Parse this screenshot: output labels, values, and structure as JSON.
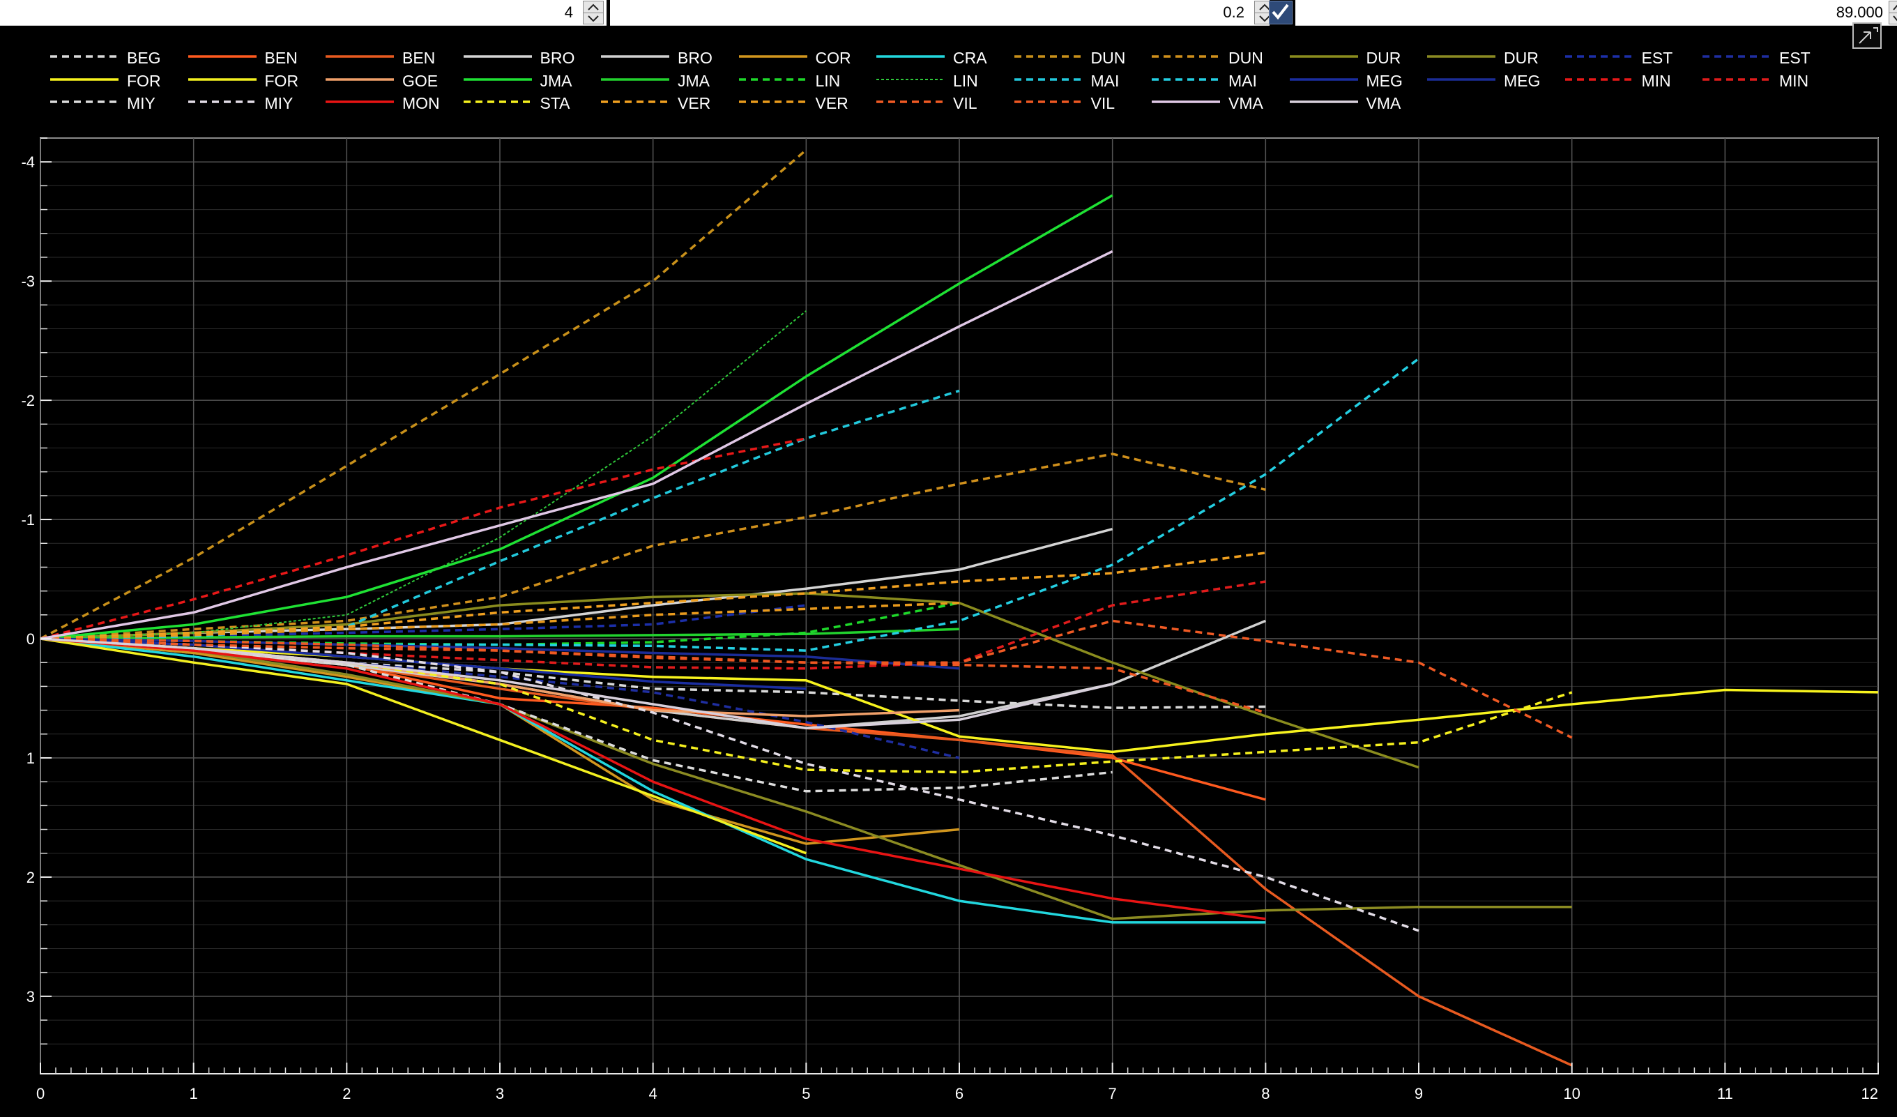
{
  "toolbar": {
    "field1_value": "4",
    "field2_value": "0.2",
    "field3_value": "89.000"
  },
  "chart_data": {
    "type": "line",
    "title": "",
    "xlabel": "",
    "ylabel": "",
    "xlim": [
      0,
      12
    ],
    "ylim": [
      -4.2,
      3.65
    ],
    "y_inverted": true,
    "grid": true,
    "legend_position": "top",
    "x_ticks": [
      "0",
      "1",
      "2",
      "3",
      "4",
      "5",
      "6",
      "7",
      "8",
      "9",
      "10",
      "11",
      "12"
    ],
    "y_ticks": [
      {
        "v": -4,
        "t": "-4"
      },
      {
        "v": -3,
        "t": "-3"
      },
      {
        "v": -2,
        "t": "-2"
      },
      {
        "v": -1,
        "t": "-1"
      },
      {
        "v": 0,
        "t": "0"
      },
      {
        "v": 1,
        "t": "1"
      },
      {
        "v": 2,
        "t": "2"
      },
      {
        "v": 3,
        "t": "3"
      }
    ],
    "series": [
      {
        "name": "BEG",
        "color": "#d9d9d9",
        "dash": "10,7",
        "x": [
          0,
          1,
          2,
          3,
          4,
          5,
          6,
          7,
          8
        ],
        "y": [
          0,
          0.12,
          0.2,
          0.28,
          0.42,
          0.45,
          0.52,
          0.58,
          0.57
        ]
      },
      {
        "name": "BEN",
        "color": "#ff5a1f",
        "dash": "",
        "x": [
          0,
          1,
          2,
          3,
          4,
          5,
          6,
          7,
          8
        ],
        "y": [
          0,
          0.1,
          0.22,
          0.5,
          0.58,
          0.72,
          0.85,
          1.0,
          1.35
        ]
      },
      {
        "name": "BEN",
        "color": "#e85a20",
        "dash": "",
        "x": [
          0,
          1,
          2,
          3,
          4,
          5,
          6,
          7,
          8,
          9,
          10
        ],
        "y": [
          0,
          0.08,
          0.22,
          0.42,
          0.6,
          0.75,
          0.85,
          0.98,
          2.1,
          3.0,
          3.58
        ]
      },
      {
        "name": "BRO",
        "color": "#d4d4d4",
        "dash": "",
        "x": [
          0,
          1,
          2,
          3,
          4,
          5,
          6,
          7
        ],
        "y": [
          0,
          -0.05,
          -0.08,
          -0.12,
          -0.28,
          -0.42,
          -0.58,
          -0.92
        ]
      },
      {
        "name": "BRO",
        "color": "#d0d0d0",
        "dash": "",
        "x": [
          0,
          1,
          2,
          3,
          4,
          5,
          6,
          7,
          8
        ],
        "y": [
          0,
          0.1,
          0.22,
          0.38,
          0.6,
          0.75,
          0.65,
          0.38,
          -0.15
        ]
      },
      {
        "name": "COR",
        "color": "#d1961e",
        "dash": "",
        "x": [
          0,
          1,
          2,
          3,
          4,
          5,
          6
        ],
        "y": [
          0,
          0.12,
          0.32,
          0.55,
          1.35,
          1.72,
          1.6
        ]
      },
      {
        "name": "CRA",
        "color": "#22d7de",
        "dash": "",
        "x": [
          0,
          1,
          2,
          3,
          4,
          5,
          6,
          7,
          8
        ],
        "y": [
          0,
          0.15,
          0.35,
          0.55,
          1.28,
          1.85,
          2.2,
          2.38,
          2.38
        ]
      },
      {
        "name": "DUN",
        "color": "#c8901a",
        "dash": "10,7",
        "x": [
          0,
          1,
          2,
          3,
          4,
          5
        ],
        "y": [
          0,
          -0.68,
          -1.45,
          -2.22,
          -3.0,
          -4.1
        ]
      },
      {
        "name": "DUN",
        "color": "#d0901c",
        "dash": "10,7",
        "x": [
          0,
          1,
          2,
          3,
          4,
          5,
          6,
          7,
          8
        ],
        "y": [
          0,
          -0.08,
          -0.15,
          -0.35,
          -0.78,
          -1.02,
          -1.3,
          -1.55,
          -1.25
        ]
      },
      {
        "name": "DUR",
        "color": "#8a8c1e",
        "dash": "",
        "x": [
          0,
          1,
          2,
          3,
          4,
          5,
          6,
          7,
          8,
          9
        ],
        "y": [
          0,
          -0.05,
          -0.12,
          -0.28,
          -0.35,
          -0.38,
          -0.3,
          0.2,
          0.65,
          1.08
        ]
      },
      {
        "name": "DUR",
        "color": "#8b8b22",
        "dash": "",
        "x": [
          0,
          1,
          2,
          3,
          4,
          5,
          6,
          7,
          8,
          9,
          10
        ],
        "y": [
          0,
          0.1,
          0.3,
          0.55,
          1.05,
          1.45,
          1.9,
          2.35,
          2.28,
          2.25,
          2.25
        ]
      },
      {
        "name": "EST",
        "color": "#1c2fa8",
        "dash": "10,7",
        "x": [
          0,
          1,
          2,
          3,
          4,
          5
        ],
        "y": [
          0,
          -0.02,
          -0.05,
          -0.08,
          -0.12,
          -0.28
        ]
      },
      {
        "name": "EST",
        "color": "#1f2ea0",
        "dash": "10,7",
        "x": [
          0,
          1,
          2,
          3,
          4,
          5,
          6
        ],
        "y": [
          0,
          0.08,
          0.2,
          0.32,
          0.45,
          0.7,
          1.0
        ]
      },
      {
        "name": "FOR",
        "color": "#f7f31e",
        "dash": "",
        "x": [
          0,
          1,
          2,
          3,
          4,
          5,
          6,
          7,
          8,
          9,
          10,
          11,
          12
        ],
        "y": [
          0,
          0.08,
          0.15,
          0.25,
          0.32,
          0.35,
          0.82,
          0.95,
          0.8,
          0.68,
          0.55,
          0.43,
          0.45
        ]
      },
      {
        "name": "FOR",
        "color": "#f3f020",
        "dash": "",
        "x": [
          0,
          1,
          2,
          3,
          4,
          5
        ],
        "y": [
          0,
          0.2,
          0.38,
          0.85,
          1.32,
          1.8
        ]
      },
      {
        "name": "GOE",
        "color": "#f0a06a",
        "dash": "",
        "x": [
          0,
          1,
          2,
          3,
          4,
          5,
          6
        ],
        "y": [
          0,
          0.08,
          0.2,
          0.38,
          0.6,
          0.65,
          0.6
        ]
      },
      {
        "name": "JMA",
        "color": "#1fe234",
        "dash": "",
        "x": [
          0,
          1,
          2,
          3,
          4,
          5,
          6,
          7
        ],
        "y": [
          0,
          -0.12,
          -0.35,
          -0.75,
          -1.35,
          -2.2,
          -2.98,
          -3.72
        ]
      },
      {
        "name": "JMA",
        "color": "#22d22e",
        "dash": "",
        "x": [
          0,
          1,
          2,
          3,
          4,
          5,
          6
        ],
        "y": [
          0,
          -0.01,
          -0.02,
          -0.02,
          -0.03,
          -0.04,
          -0.08
        ]
      },
      {
        "name": "LIN",
        "color": "#1ed82a",
        "dash": "10,7",
        "x": [
          0,
          1,
          2,
          3,
          4,
          5,
          6
        ],
        "y": [
          0,
          0.02,
          0.04,
          0.05,
          0.03,
          -0.05,
          -0.3
        ]
      },
      {
        "name": "LIN",
        "color": "#2ec83a",
        "dash": "4,3",
        "x": [
          0,
          1,
          2,
          3,
          4,
          5
        ],
        "y": [
          0,
          -0.05,
          -0.2,
          -0.85,
          -1.7,
          -2.75
        ]
      },
      {
        "name": "MAI",
        "color": "#22c9dc",
        "dash": "10,7",
        "x": [
          0,
          1,
          2,
          3,
          4,
          5,
          6
        ],
        "y": [
          0,
          -0.02,
          -0.1,
          -0.65,
          -1.18,
          -1.68,
          -2.08
        ]
      },
      {
        "name": "MAI",
        "color": "#24cfe2",
        "dash": "10,7",
        "x": [
          0,
          1,
          2,
          3,
          4,
          5,
          6,
          7,
          8,
          9
        ],
        "y": [
          0,
          0.02,
          0.05,
          0.05,
          0.06,
          0.1,
          -0.15,
          -0.62,
          -1.38,
          -2.35
        ]
      },
      {
        "name": "MEG",
        "color": "#1a2da0",
        "dash": "",
        "x": [
          0,
          1,
          2,
          3,
          4,
          5
        ],
        "y": [
          0,
          0.05,
          0.15,
          0.25,
          0.36,
          0.42
        ]
      },
      {
        "name": "MEG",
        "color": "#1b2c96",
        "dash": "",
        "x": [
          0,
          1,
          2,
          3,
          4,
          5,
          6
        ],
        "y": [
          0,
          0.02,
          0.05,
          0.08,
          0.12,
          0.15,
          0.25
        ]
      },
      {
        "name": "MIN",
        "color": "#e81818",
        "dash": "10,7",
        "x": [
          0,
          1,
          2,
          3,
          4,
          5
        ],
        "y": [
          0,
          -0.33,
          -0.7,
          -1.1,
          -1.42,
          -1.68
        ]
      },
      {
        "name": "MIN",
        "color": "#e01c1c",
        "dash": "10,7",
        "x": [
          0,
          1,
          2,
          3,
          4,
          5,
          6,
          7,
          8
        ],
        "y": [
          0,
          0.05,
          0.12,
          0.18,
          0.24,
          0.25,
          0.2,
          -0.28,
          -0.48
        ]
      },
      {
        "name": "MIY",
        "color": "#dcdcdc",
        "dash": "10,7",
        "x": [
          0,
          1,
          2,
          3,
          4,
          5,
          6,
          7
        ],
        "y": [
          0,
          0.1,
          0.22,
          0.55,
          1.02,
          1.28,
          1.25,
          1.12
        ]
      },
      {
        "name": "MIY",
        "color": "#e2dce6",
        "dash": "10,7",
        "x": [
          0,
          1,
          2,
          3,
          4,
          5,
          6,
          7,
          8,
          9
        ],
        "y": [
          0,
          0.05,
          0.12,
          0.28,
          0.62,
          1.05,
          1.35,
          1.65,
          2.0,
          2.45
        ]
      },
      {
        "name": "MON",
        "color": "#e81414",
        "dash": "",
        "x": [
          0,
          1,
          2,
          3,
          4,
          5,
          6,
          7,
          8
        ],
        "y": [
          0,
          0.1,
          0.25,
          0.55,
          1.2,
          1.68,
          1.93,
          2.18,
          2.35
        ]
      },
      {
        "name": "STA",
        "color": "#f5f01e",
        "dash": "10,7",
        "x": [
          0,
          1,
          2,
          3,
          4,
          5,
          6,
          7,
          8,
          9,
          10
        ],
        "y": [
          0,
          0.08,
          0.2,
          0.38,
          0.85,
          1.1,
          1.12,
          1.03,
          0.95,
          0.87,
          0.45
        ]
      },
      {
        "name": "VER",
        "color": "#f0a020",
        "dash": "10,7",
        "x": [
          0,
          1,
          2,
          3,
          4,
          5,
          6,
          7,
          8
        ],
        "y": [
          0,
          -0.05,
          -0.1,
          -0.22,
          -0.3,
          -0.38,
          -0.48,
          -0.55,
          -0.72
        ]
      },
      {
        "name": "VER",
        "color": "#e89a1c",
        "dash": "10,7",
        "x": [
          0,
          1,
          2,
          3,
          4,
          5,
          6
        ],
        "y": [
          0,
          -0.03,
          -0.08,
          -0.12,
          -0.2,
          -0.25,
          -0.3
        ]
      },
      {
        "name": "VIL",
        "color": "#f05a24",
        "dash": "10,7",
        "x": [
          0,
          1,
          2,
          3,
          4,
          5,
          6,
          7,
          8,
          9,
          10
        ],
        "y": [
          0,
          0.05,
          0.08,
          0.1,
          0.15,
          0.2,
          0.2,
          -0.15,
          0.02,
          0.2,
          0.83
        ]
      },
      {
        "name": "VIL",
        "color": "#ee5822",
        "dash": "10,7",
        "x": [
          0,
          1,
          2,
          3,
          4,
          5,
          6,
          7,
          8
        ],
        "y": [
          0,
          0.02,
          0.05,
          0.1,
          0.16,
          0.2,
          0.22,
          0.25,
          0.62
        ]
      },
      {
        "name": "VMA",
        "color": "#e0c8e6",
        "dash": "",
        "x": [
          0,
          1,
          2,
          3,
          4,
          5,
          6,
          7
        ],
        "y": [
          0,
          -0.22,
          -0.6,
          -0.95,
          -1.3,
          -1.97,
          -2.62,
          -3.25
        ]
      },
      {
        "name": "VMA",
        "color": "#d8d0dc",
        "dash": "",
        "x": [
          0,
          1,
          2,
          3,
          4,
          5,
          6,
          7
        ],
        "y": [
          0,
          0.08,
          0.2,
          0.35,
          0.55,
          0.75,
          0.68,
          0.38
        ]
      }
    ]
  }
}
